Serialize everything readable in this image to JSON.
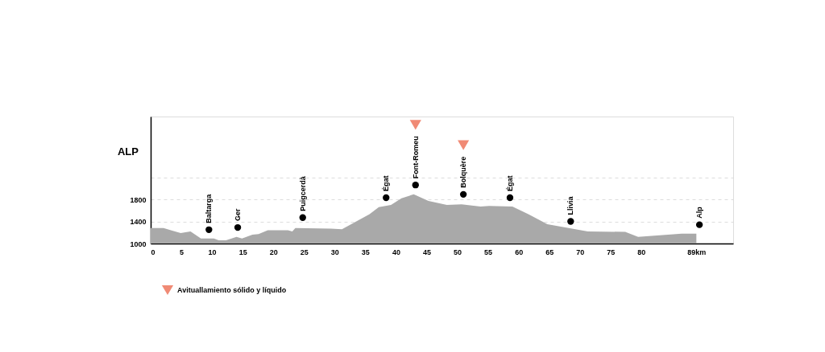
{
  "chart_data": {
    "type": "area",
    "title": "ALP",
    "xlim": [
      0,
      95
    ],
    "ylim": [
      1000,
      3300
    ],
    "xticks": [
      0,
      5,
      10,
      15,
      20,
      25,
      30,
      35,
      40,
      45,
      50,
      55,
      60,
      65,
      70,
      75,
      80,
      {
        "value": 89,
        "label": "89km"
      }
    ],
    "yticks": [
      1000,
      1400,
      1800,
      {
        "value": 2200,
        "label": null
      }
    ],
    "grid": "y",
    "legend": "bottom left",
    "series": [
      {
        "color": "#a9a9a9",
        "x": [
          0,
          2.1,
          3.3,
          4.9,
          6.5,
          8.2,
          10.3,
          11.1,
          12.3,
          14,
          14.9,
          16.6,
          17.6,
          19.1,
          22.4,
          23.1,
          23.6,
          29.4,
          31.2,
          35.7,
          37.2,
          39.2,
          40.9,
          42.9,
          45.3,
          48.3,
          50.7,
          53.8,
          55.2,
          59,
          61.6,
          64.7,
          71.3,
          77.4,
          79.5,
          86.6,
          89
        ],
        "values": [
          1280,
          1280,
          1240,
          1190,
          1220,
          1090,
          1090,
          1060,
          1060,
          1120,
          1090,
          1160,
          1170,
          1240,
          1240,
          1220,
          1280,
          1270,
          1260,
          1530,
          1660,
          1700,
          1820,
          1890,
          1770,
          1700,
          1710,
          1670,
          1680,
          1670,
          1530,
          1350,
          1220,
          1210,
          1120,
          1180,
          1180
        ]
      },
      {
        "type": "scatter",
        "marker": "circle",
        "color": "#000000",
        "x": [
          9.5,
          14.2,
          24.8,
          38.4,
          43.2,
          51,
          58.6,
          68.5,
          89.5
        ],
        "values": [
          1250,
          1290,
          1470,
          1830,
          2060,
          1890,
          1830,
          1400,
          1340
        ]
      },
      {
        "type": "scatter",
        "marker": "triangle",
        "name": "Avituallamiento sólido y líquido",
        "color": "#f08a75",
        "x": [
          43.2,
          51
        ],
        "values": [
          3150,
          2780
        ]
      }
    ],
    "annotations": [
      {
        "text": "Baltarga",
        "x": 9.5,
        "y": 1250
      },
      {
        "text": "Ger",
        "x": 14.2,
        "y": 1290
      },
      {
        "text": "Puigcerdà",
        "x": 24.8,
        "y": 1470
      },
      {
        "text": "Égat",
        "x": 38.4,
        "y": 1830
      },
      {
        "text": "Font-Romeu",
        "x": 43.2,
        "y": 2060
      },
      {
        "text": "Bolquère",
        "x": 51,
        "y": 1890
      },
      {
        "text": "Égat",
        "x": 58.6,
        "y": 1830
      },
      {
        "text": "Llivia",
        "x": 68.5,
        "y": 1400
      },
      {
        "text": "Alp",
        "x": 89.5,
        "y": 1340
      }
    ]
  }
}
